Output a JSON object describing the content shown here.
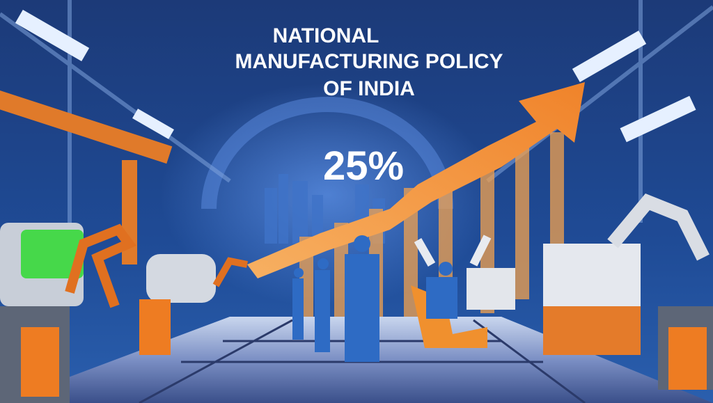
{
  "title": {
    "lines": [
      "NATIONAL",
      "MANUFACTURING POLICY",
      "OF INDIA"
    ]
  },
  "highlight": {
    "text": "25%"
  }
}
